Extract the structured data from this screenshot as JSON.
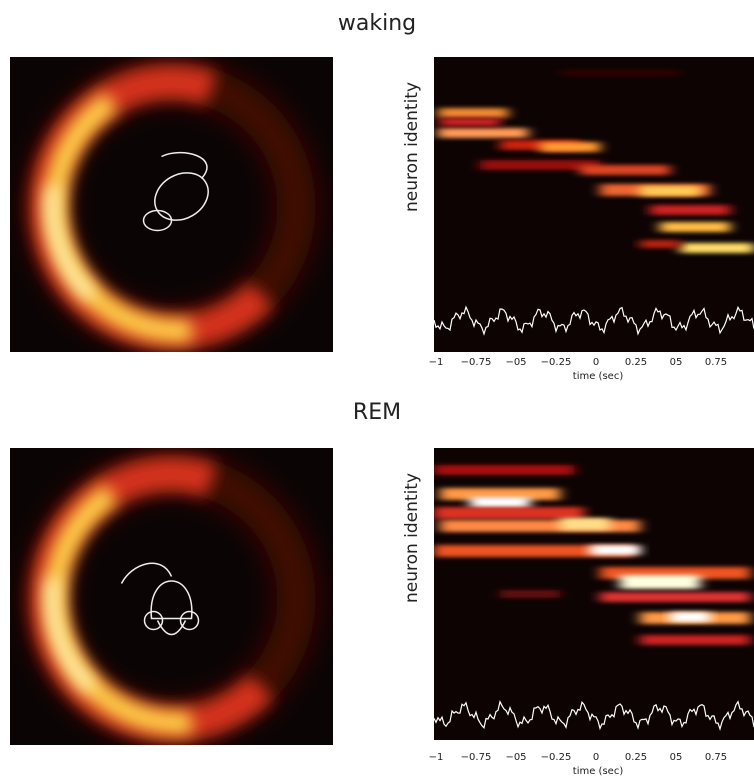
{
  "panels": [
    {
      "title": "waking",
      "y_label": "neuron identity",
      "x_label": "time (sec)",
      "x_ticks": [
        "−1",
        "−0.75",
        "−05",
        "−0.25",
        "0",
        "0.25",
        "05",
        "0.75"
      ]
    },
    {
      "title": "REM",
      "y_label": "neuron identity",
      "x_label": "time (sec)",
      "x_ticks": [
        "−1",
        "−0.75",
        "−05",
        "−0.25",
        "0",
        "0.25",
        "05",
        "0.75"
      ]
    }
  ]
}
